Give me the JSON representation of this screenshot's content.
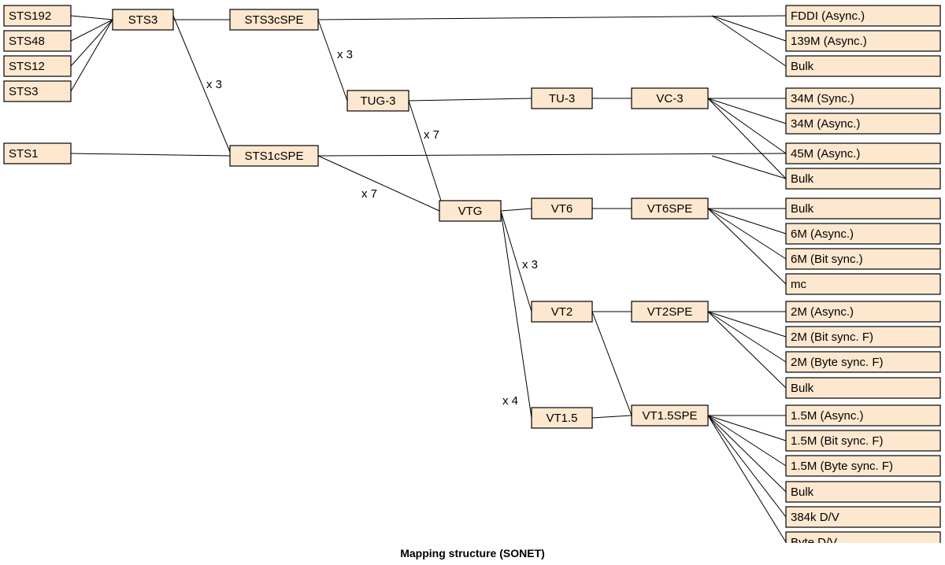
{
  "caption": "Mapping structure (SONET)",
  "colors": {
    "box_fill": "#fde8cf",
    "box_stroke": "#000000",
    "line": "#000000"
  },
  "nodes": {
    "sts192": "STS192",
    "sts48": "STS48",
    "sts12": "STS12",
    "sts3_in": "STS3",
    "sts1": "STS1",
    "sts3": "STS3",
    "sts3cspe": "STS3cSPE",
    "sts1cspe": "STS1cSPE",
    "tug3": "TUG-3",
    "tu3": "TU-3",
    "vc3": "VC-3",
    "vtg": "VTG",
    "vt6": "VT6",
    "vt6spe": "VT6SPE",
    "vt2": "VT2",
    "vt2spe": "VT2SPE",
    "vt15": "VT1.5",
    "vt15spe": "VT1.5SPE",
    "fddi": "FDDI (Async.)",
    "m139": "139M (Async.)",
    "bulk1": "Bulk",
    "m34s": "34M (Sync.)",
    "m34a": "34M (Async.)",
    "m45": "45M (Async.)",
    "bulk2": "Bulk",
    "bulk3": "Bulk",
    "m6a": "6M (Async.)",
    "m6b": "6M (Bit sync.)",
    "mc": "mc",
    "m2a": "2M (Async.)",
    "m2b": "2M (Bit sync. F)",
    "m2c": "2M (Byte sync. F)",
    "bulk4": "Bulk",
    "m15a": "1.5M (Async.)",
    "m15b": "1.5M (Bit sync. F)",
    "m15c": "1.5M (Byte sync. F)",
    "bulk5": "Bulk",
    "k384": "384k D/V",
    "bytedv": "Byte D/V"
  },
  "multipliers": {
    "sts3_to_sts1cspe": "x 3",
    "sts3cspe_to_tug3": "x 3",
    "tug3_to_vtg": "x 7",
    "sts1cspe_to_vtg": "x 7",
    "vtg_to_vt2": "x 3",
    "vtg_to_vt15": "x 4"
  },
  "edges": [
    [
      "sts192",
      "sts3"
    ],
    [
      "sts48",
      "sts3"
    ],
    [
      "sts12",
      "sts3"
    ],
    [
      "sts3_in",
      "sts3"
    ],
    [
      "sts3",
      "sts3cspe"
    ],
    [
      "sts3",
      "sts1cspe"
    ],
    [
      "sts1",
      "sts1cspe"
    ],
    [
      "sts3cspe",
      "fddi"
    ],
    [
      "sts3cspe",
      "m139"
    ],
    [
      "sts3cspe",
      "bulk1"
    ],
    [
      "sts3cspe",
      "tug3"
    ],
    [
      "tug3",
      "tu3"
    ],
    [
      "tu3",
      "vc3"
    ],
    [
      "tug3",
      "vtg"
    ],
    [
      "vc3",
      "m34s"
    ],
    [
      "vc3",
      "m34a"
    ],
    [
      "vc3",
      "m45"
    ],
    [
      "vc3",
      "bulk2"
    ],
    [
      "sts1cspe",
      "m45"
    ],
    [
      "sts1cspe",
      "bulk2"
    ],
    [
      "sts1cspe",
      "vtg"
    ],
    [
      "vtg",
      "vt6"
    ],
    [
      "vt6",
      "vt6spe"
    ],
    [
      "vtg",
      "vt2"
    ],
    [
      "vtg",
      "vt15"
    ],
    [
      "vt6spe",
      "bulk3"
    ],
    [
      "vt6spe",
      "m6a"
    ],
    [
      "vt6spe",
      "m6b"
    ],
    [
      "vt6spe",
      "mc"
    ],
    [
      "vt2",
      "vt2spe"
    ],
    [
      "vt2",
      "vt15spe"
    ],
    [
      "vt15",
      "vt15spe"
    ],
    [
      "vt2spe",
      "m2a"
    ],
    [
      "vt2spe",
      "m2b"
    ],
    [
      "vt2spe",
      "m2c"
    ],
    [
      "vt2spe",
      "bulk4"
    ],
    [
      "vt15spe",
      "m15a"
    ],
    [
      "vt15spe",
      "m15b"
    ],
    [
      "vt15spe",
      "m15c"
    ],
    [
      "vt15spe",
      "bulk5"
    ],
    [
      "vt15spe",
      "k384"
    ],
    [
      "vt15spe",
      "bytedv"
    ]
  ]
}
